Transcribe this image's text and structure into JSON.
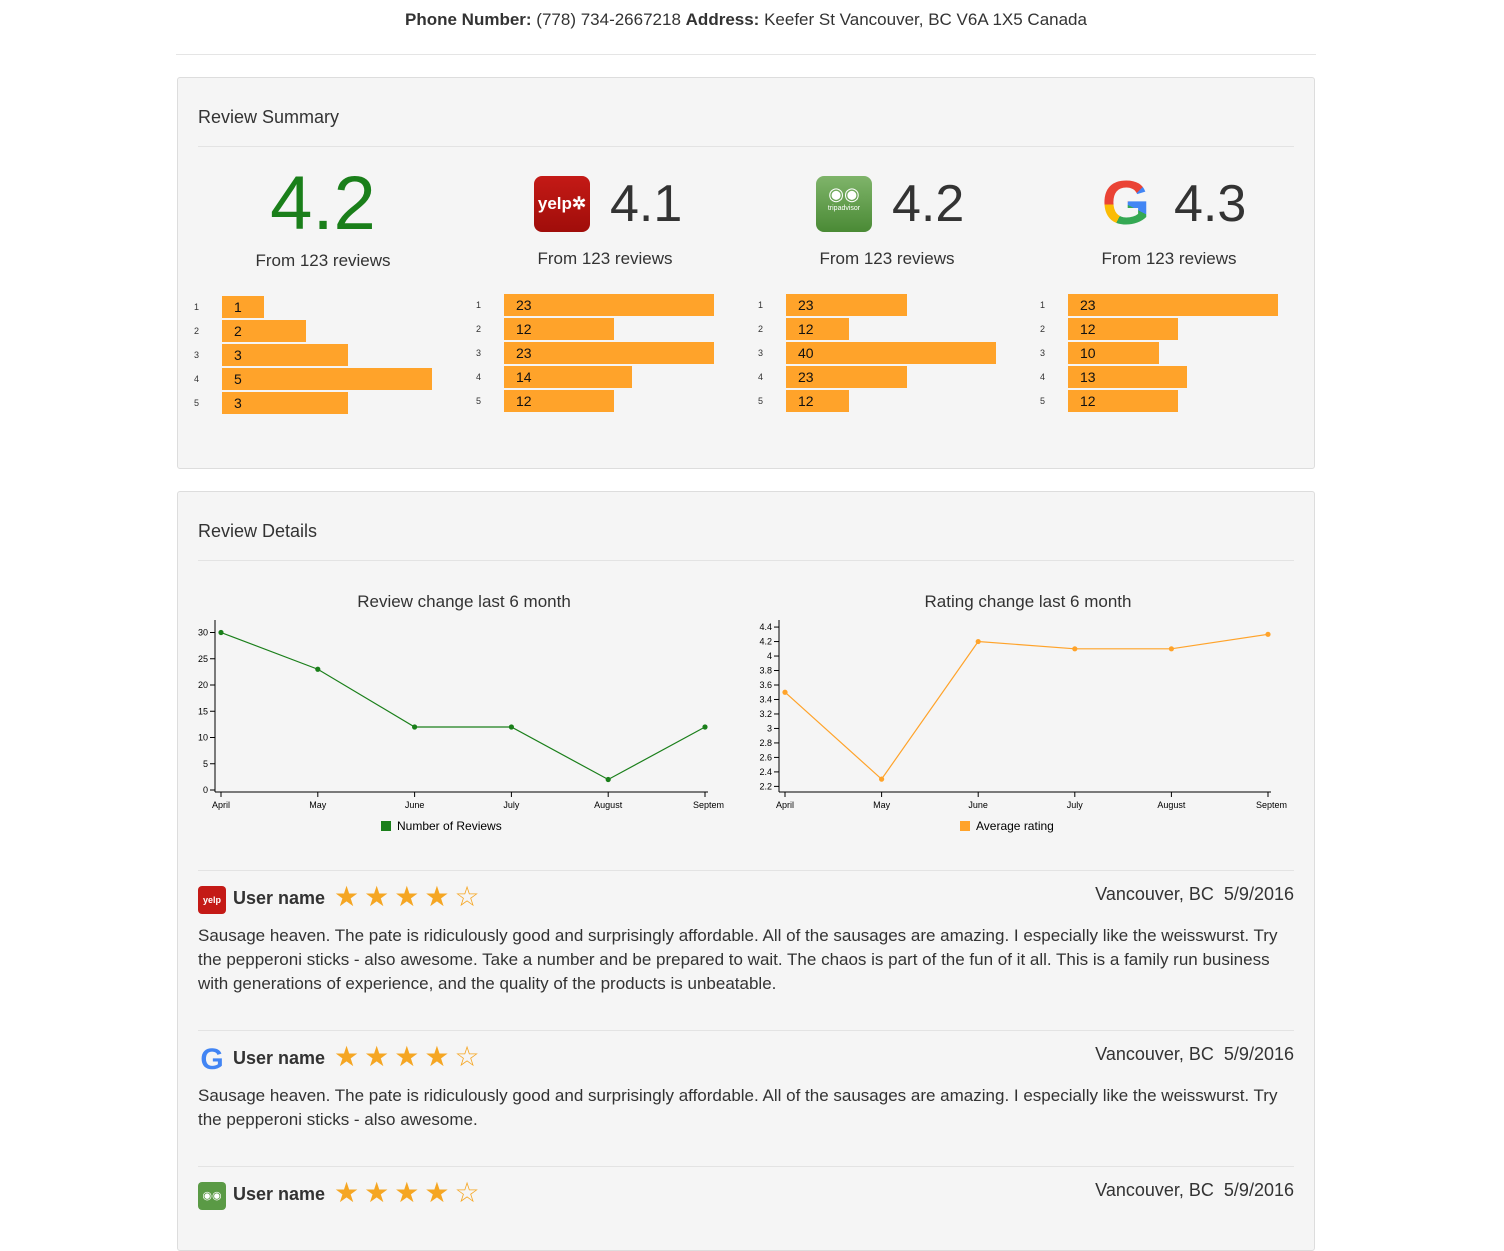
{
  "contact": {
    "phone_label": "Phone Number:",
    "phone": "(778) 734-2667218",
    "address_label": "Address:",
    "address": "Keefer St Vancouver, BC V6A 1X5 Canada"
  },
  "summary": {
    "title": "Review Summary",
    "bar_color": "#ffa32a",
    "overall": {
      "score": "4.2",
      "from": "From 123 reviews",
      "bars": [
        {
          "label": "1",
          "value": 1
        },
        {
          "label": "2",
          "value": 2
        },
        {
          "label": "3",
          "value": 3
        },
        {
          "label": "4",
          "value": 5
        },
        {
          "label": "5",
          "value": 3
        }
      ]
    },
    "sources": [
      {
        "name": "yelp",
        "logo_text": "yelp",
        "score": "4.1",
        "from": "From 123 reviews",
        "bars": [
          {
            "label": "1",
            "value": 23
          },
          {
            "label": "2",
            "value": 12
          },
          {
            "label": "3",
            "value": 23
          },
          {
            "label": "4",
            "value": 14
          },
          {
            "label": "5",
            "value": 12
          }
        ]
      },
      {
        "name": "tripadvisor",
        "logo_text": "tripadvisor",
        "score": "4.2",
        "from": "From 123 reviews",
        "bars": [
          {
            "label": "1",
            "value": 23
          },
          {
            "label": "2",
            "value": 12
          },
          {
            "label": "3",
            "value": 40
          },
          {
            "label": "4",
            "value": 23
          },
          {
            "label": "5",
            "value": 12
          }
        ]
      },
      {
        "name": "google",
        "logo_text": "G",
        "score": "4.3",
        "from": "From 123 reviews",
        "bars": [
          {
            "label": "1",
            "value": 23
          },
          {
            "label": "2",
            "value": 12
          },
          {
            "label": "3",
            "value": 10
          },
          {
            "label": "4",
            "value": 13
          },
          {
            "label": "5",
            "value": 12
          }
        ]
      }
    ]
  },
  "details": {
    "title": "Review Details"
  },
  "chart_data": [
    {
      "type": "line",
      "title": "Review change last 6 month",
      "categories": [
        "April",
        "May",
        "June",
        "July",
        "August",
        "Septem"
      ],
      "series": [
        {
          "name": "Number of Reviews",
          "values": [
            30,
            23,
            12,
            12,
            2,
            12
          ],
          "color": "#1a7f1a"
        }
      ],
      "yticks": [
        0,
        5,
        10,
        15,
        20,
        25,
        30
      ],
      "ylim": [
        0,
        32
      ],
      "legend": "bottom"
    },
    {
      "type": "line",
      "title": "Rating change last 6 month",
      "categories": [
        "April",
        "May",
        "June",
        "July",
        "August",
        "Septem"
      ],
      "series": [
        {
          "name": "Average rating",
          "values": [
            3.5,
            2.3,
            4.2,
            4.1,
            4.1,
            4.3
          ],
          "color": "#ffa32a"
        }
      ],
      "yticks": [
        "2.2",
        "2.4",
        "2.6",
        "2.8",
        "3",
        "3.2",
        "3.4",
        "3.6",
        "3.8",
        "4",
        "4.2",
        "4.4"
      ],
      "ylim": [
        2.15,
        4.47
      ],
      "legend": "bottom"
    }
  ],
  "reviews": [
    {
      "source": "yelp",
      "user": "User name",
      "rating": 4,
      "location": "Vancouver, BC",
      "date": "5/9/2016",
      "text": "Sausage heaven. The pate is ridiculously good and surprisingly affordable. All of the sausages are amazing. I especially like the weisswurst. Try the pepperoni sticks - also awesome. Take a number and be prepared to wait. The chaos is part of the fun of it all. This is a family run business with generations of experience, and the quality of the products is unbeatable."
    },
    {
      "source": "google",
      "user": "User name",
      "rating": 4,
      "location": "Vancouver, BC",
      "date": "5/9/2016",
      "text": "Sausage heaven. The pate is ridiculously good and surprisingly affordable. All of the sausages are amazing. I especially like the weisswurst. Try the pepperoni sticks - also awesome."
    },
    {
      "source": "tripadvisor",
      "user": "User name",
      "rating": 4,
      "location": "Vancouver, BC",
      "date": "5/9/2016",
      "text": ""
    }
  ]
}
